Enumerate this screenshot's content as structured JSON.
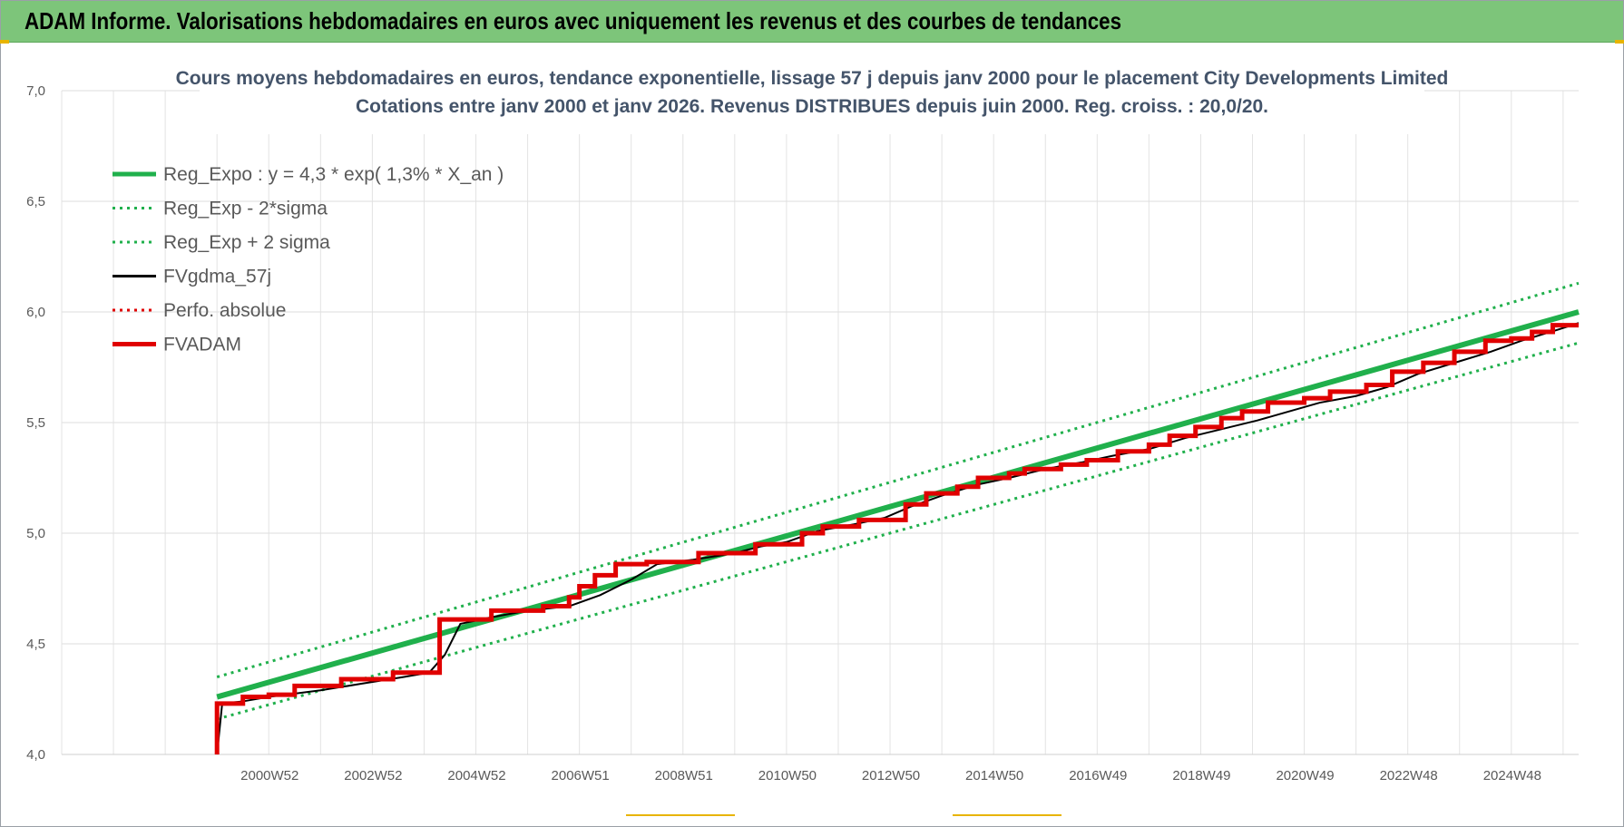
{
  "banner": {
    "title": "ADAM Informe. Valorisations hebdomadaires en euros avec uniquement les revenus et des courbes de tendances"
  },
  "chart_data": {
    "type": "line",
    "title": "Cours moyens hebdomadaires en euros, tendance exponentielle, lissage 57 j depuis janv 2000 pour le placement City Developments Limited",
    "subtitle": "Cotations entre janv 2000 et janv 2026. Revenus DISTRIBUES depuis juin 2000. Reg. croiss. : 20,0/20.",
    "ylim": [
      4.0,
      7.0
    ],
    "y_ticks": [
      "4,0",
      "4,5",
      "5,0",
      "5,5",
      "6,0",
      "6,5",
      "7,0"
    ],
    "y_tick_values": [
      4.0,
      4.5,
      5.0,
      5.5,
      6.0,
      6.5,
      7.0
    ],
    "xlim": [
      1997.0,
      2026.3
    ],
    "x_ticks": [
      "2000W52",
      "2002W52",
      "2004W52",
      "2006W51",
      "2008W51",
      "2010W50",
      "2012W50",
      "2014W50",
      "2016W49",
      "2018W49",
      "2020W49",
      "2022W48",
      "2024W48"
    ],
    "x_tick_values": [
      2001.0,
      2003.0,
      2005.0,
      2007.0,
      2009.0,
      2011.0,
      2013.0,
      2015.0,
      2017.0,
      2019.0,
      2021.0,
      2023.0,
      2025.0
    ],
    "grid": true,
    "legend_position": "top-left",
    "series": [
      {
        "name": "Reg_Expo : y = 4,3 * exp( 1,3% *  X_an )",
        "color": "#20b04c",
        "style": "solid-thick",
        "x": [
          2000.0,
          2026.3
        ],
        "values": [
          4.26,
          6.0
        ]
      },
      {
        "name": "Reg_Exp - 2*sigma",
        "color": "#20b04c",
        "style": "dotted",
        "x": [
          2000.0,
          2026.3
        ],
        "values": [
          4.16,
          5.86
        ]
      },
      {
        "name": "Reg_Exp + 2 sigma",
        "color": "#20b04c",
        "style": "dotted",
        "x": [
          2000.0,
          2026.3
        ],
        "values": [
          4.35,
          6.13
        ]
      },
      {
        "name": "FVgdma_57j",
        "color": "#000000",
        "style": "solid",
        "x": [
          2000.0,
          2000.1,
          2000.5,
          2001.0,
          2002.0,
          2002.8,
          2003.6,
          2004.1,
          2004.4,
          2004.7,
          2005.3,
          2006.0,
          2006.8,
          2007.4,
          2008.0,
          2008.5,
          2009.2,
          2010.0,
          2010.5,
          2011.0,
          2011.6,
          2012.3,
          2012.9,
          2013.4,
          2014.0,
          2014.7,
          2015.3,
          2016.0,
          2016.7,
          2017.3,
          2018.0,
          2018.7,
          2019.4,
          2020.1,
          2020.7,
          2021.3,
          2022.0,
          2022.6,
          2023.2,
          2023.9,
          2024.6,
          2025.2,
          2025.9,
          2026.3
        ],
        "values": [
          4.0,
          4.23,
          4.24,
          4.26,
          4.29,
          4.32,
          4.35,
          4.37,
          4.45,
          4.59,
          4.62,
          4.65,
          4.67,
          4.72,
          4.79,
          4.86,
          4.88,
          4.91,
          4.94,
          4.96,
          5.01,
          5.04,
          5.07,
          5.12,
          5.17,
          5.22,
          5.25,
          5.29,
          5.32,
          5.35,
          5.38,
          5.43,
          5.47,
          5.51,
          5.55,
          5.59,
          5.62,
          5.66,
          5.72,
          5.77,
          5.82,
          5.87,
          5.92,
          5.95
        ]
      },
      {
        "name": "Perfo. absolue",
        "color": "#e00000",
        "style": "dotted",
        "x": [],
        "values": []
      },
      {
        "name": "FVADAM",
        "color": "#e00000",
        "style": "step-thick",
        "x": [
          2000.0,
          2000.0,
          2000.5,
          2001.0,
          2001.5,
          2002.4,
          2003.4,
          2004.3,
          2005.3,
          2006.3,
          2006.8,
          2007.0,
          2007.3,
          2007.7,
          2008.3,
          2009.3,
          2010.4,
          2011.3,
          2011.7,
          2012.4,
          2013.3,
          2013.7,
          2014.3,
          2014.7,
          2015.3,
          2015.6,
          2016.3,
          2016.8,
          2017.4,
          2018.0,
          2018.4,
          2018.9,
          2019.4,
          2019.8,
          2020.3,
          2021.0,
          2021.5,
          2022.2,
          2022.7,
          2023.3,
          2023.9,
          2024.5,
          2025.0,
          2025.4,
          2025.8,
          2026.3
        ],
        "values": [
          4.0,
          4.23,
          4.26,
          4.27,
          4.31,
          4.34,
          4.37,
          4.61,
          4.65,
          4.67,
          4.71,
          4.76,
          4.81,
          4.86,
          4.87,
          4.91,
          4.95,
          5.0,
          5.03,
          5.06,
          5.13,
          5.18,
          5.21,
          5.25,
          5.27,
          5.29,
          5.31,
          5.33,
          5.37,
          5.4,
          5.44,
          5.48,
          5.52,
          5.55,
          5.59,
          5.61,
          5.64,
          5.67,
          5.73,
          5.77,
          5.82,
          5.87,
          5.88,
          5.91,
          5.94,
          5.94
        ]
      }
    ]
  }
}
